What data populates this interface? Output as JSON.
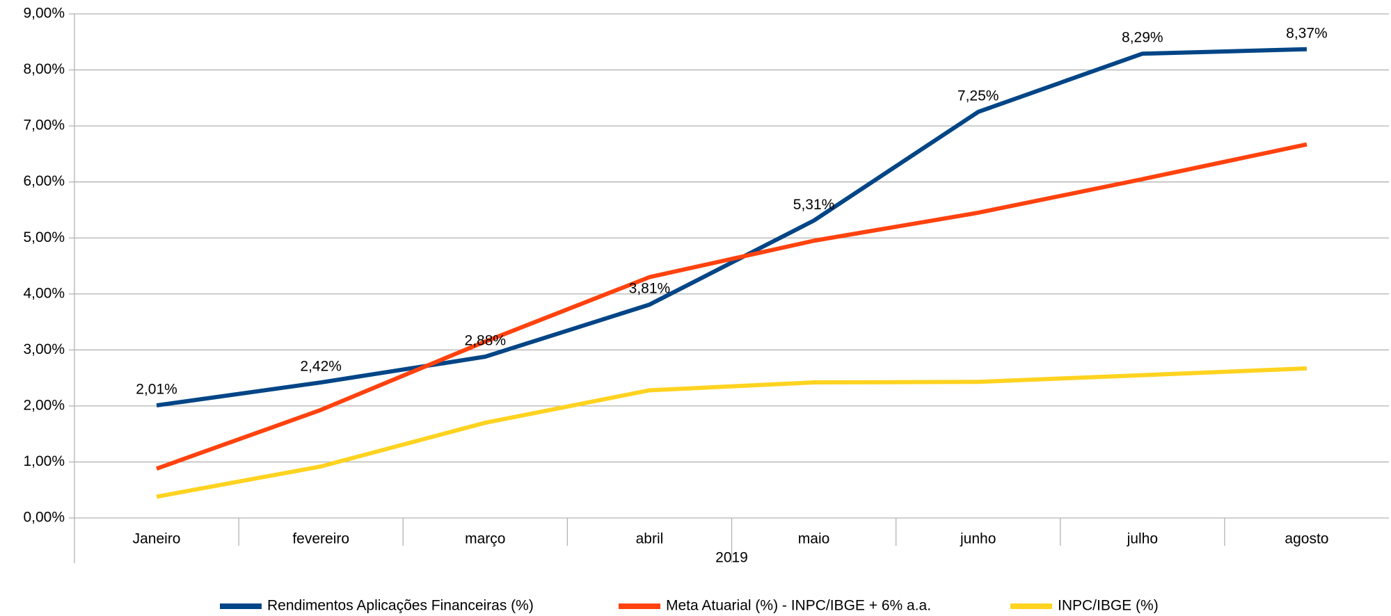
{
  "chart_data": {
    "type": "line",
    "categories": [
      "Janeiro",
      "fevereiro",
      "março",
      "abril",
      "maio",
      "junho",
      "julho",
      "agosto"
    ],
    "x_group_label": "2019",
    "series": [
      {
        "name": "Rendimentos Aplicações Financeiras (%)",
        "color": "#004586",
        "values": [
          2.01,
          2.42,
          2.88,
          3.81,
          5.31,
          7.25,
          8.29,
          8.37
        ],
        "value_labels": [
          "2,01%",
          "2,42%",
          "2,88%",
          "3,81%",
          "5,31%",
          "7,25%",
          "8,29%",
          "8,37%"
        ]
      },
      {
        "name": "Meta Atuarial (%) - INPC/IBGE + 6% a.a.",
        "color": "#ff420e",
        "values": [
          0.88,
          1.93,
          3.15,
          4.3,
          4.95,
          5.45,
          6.05,
          6.67
        ]
      },
      {
        "name": "INPC/IBGE (%)",
        "color": "#ffd320",
        "values": [
          0.38,
          0.92,
          1.7,
          2.28,
          2.42,
          2.43,
          2.55,
          2.67
        ]
      }
    ],
    "ylim": [
      0,
      9
    ],
    "yticks": [
      {
        "value": 0,
        "label": "0,00%"
      },
      {
        "value": 1,
        "label": "1,00%"
      },
      {
        "value": 2,
        "label": "2,00%"
      },
      {
        "value": 3,
        "label": "3,00%"
      },
      {
        "value": 4,
        "label": "4,00%"
      },
      {
        "value": 5,
        "label": "5,00%"
      },
      {
        "value": 6,
        "label": "6,00%"
      },
      {
        "value": 7,
        "label": "7,00%"
      },
      {
        "value": 8,
        "label": "8,00%"
      },
      {
        "value": 9,
        "label": "9,00%"
      }
    ],
    "grid": true,
    "legend": "bottom"
  }
}
